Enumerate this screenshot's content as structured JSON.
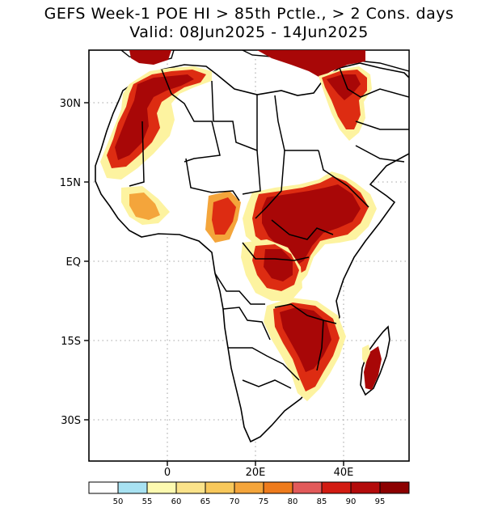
{
  "header": {
    "title_line1": "GEFS Week-1 POE HI > 85th Pctle., > 2 Cons. days",
    "title_line2": "Valid: 08Jun2025 - 14Jun2025"
  },
  "axes": {
    "lat_labels": [
      "30N",
      "15N",
      "EQ",
      "15S",
      "30S"
    ],
    "lon_labels": [
      "0",
      "20E",
      "40E"
    ]
  },
  "colorbar": {
    "labels": [
      "50",
      "55",
      "60",
      "65",
      "70",
      "75",
      "80",
      "85",
      "90",
      "95"
    ],
    "colors": [
      "#ffffff",
      "#a8e2f2",
      "#fdfab0",
      "#fbe38a",
      "#f8c85b",
      "#f4a53b",
      "#ee7b1c",
      "#e25a5a",
      "#d21b12",
      "#b30b0b",
      "#8c0000"
    ]
  },
  "regions": {
    "land_color": "#ffffff",
    "border_color": "#000000",
    "high_color": "#a80707",
    "mid_color": "#dd2c12",
    "low_color": "#f4a53b",
    "edge_color": "#fdf3a0",
    "fringe_color": "#bfe8f2"
  }
}
